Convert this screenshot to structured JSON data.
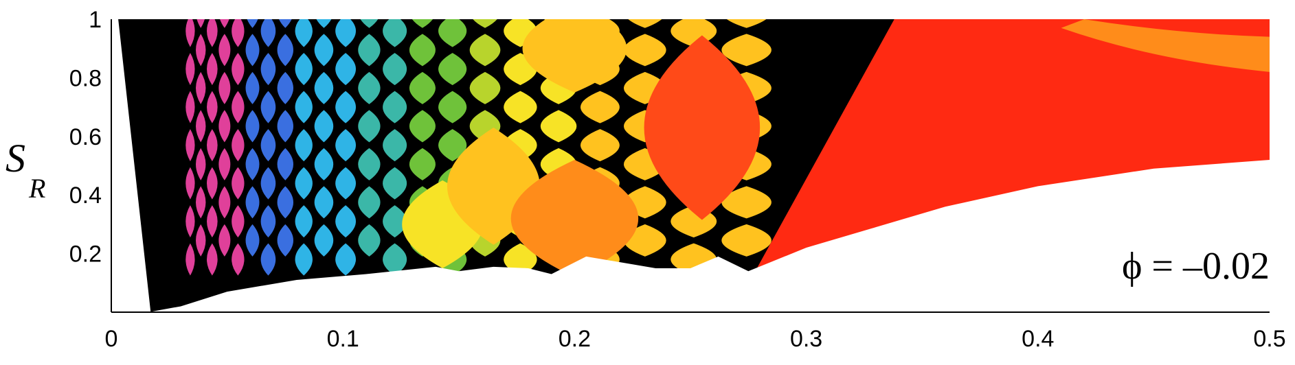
{
  "chart_data": {
    "type": "heatmap",
    "title": "",
    "xlabel": "",
    "ylabel": {
      "main": "S",
      "sub": "R"
    },
    "xlim": [
      0,
      0.5
    ],
    "ylim": [
      0,
      1
    ],
    "xticks": [
      0,
      0.1,
      0.2,
      0.3,
      0.4,
      0.5
    ],
    "xtick_labels": [
      "0",
      "0.1",
      "0.2",
      "0.3",
      "0.4",
      "0.5"
    ],
    "yticks": [
      0.2,
      0.4,
      0.6,
      0.8,
      1
    ],
    "ytick_labels": [
      "0.2",
      "0.4",
      "0.6",
      "0.8",
      "1"
    ],
    "annotation": "ϕ = –0.02",
    "grid": false,
    "colors": {
      "black": "#000000",
      "red": "#ff2a12",
      "red_orange": "#ff4a18",
      "orange": "#ff8c1a",
      "amber": "#ffc21f",
      "yellow": "#f7e326",
      "yellow_green": "#b8d42c",
      "green": "#6fc23a",
      "teal": "#3bb7a8",
      "cyan": "#2fb4e6",
      "blue": "#3a6fe0",
      "magenta": "#e0409a",
      "white": "#ffffff"
    },
    "regions": [
      {
        "name": "lower-boundary",
        "x": [
          0.0,
          0.016,
          0.03,
          0.05,
          0.08,
          0.11,
          0.14,
          0.15,
          0.165,
          0.18,
          0.19,
          0.205,
          0.22,
          0.235,
          0.25,
          0.262,
          0.275,
          0.3,
          0.33,
          0.36,
          0.4,
          0.45,
          0.5
        ],
        "y": [
          0.0,
          0.0,
          0.02,
          0.07,
          0.11,
          0.13,
          0.155,
          0.14,
          0.155,
          0.15,
          0.13,
          0.19,
          0.17,
          0.15,
          0.15,
          0.19,
          0.14,
          0.22,
          0.29,
          0.36,
          0.43,
          0.49,
          0.52
        ]
      },
      {
        "name": "black-left-band",
        "x_range": [
          0.0,
          0.03
        ]
      },
      {
        "name": "large-red-region",
        "x_range": [
          0.278,
          0.5
        ],
        "y_range": [
          0.14,
          1.0
        ]
      },
      {
        "name": "red-orange-lens",
        "center": [
          0.255,
          0.63
        ],
        "width": 0.05,
        "height": 0.63
      },
      {
        "name": "orange-lens",
        "center": [
          0.2,
          0.32
        ],
        "width": 0.055,
        "height": 0.4
      },
      {
        "name": "amber-lens-top",
        "center": [
          0.2,
          0.9
        ],
        "width": 0.045,
        "height": 0.3
      },
      {
        "name": "yellow-lens",
        "center": [
          0.165,
          0.43
        ],
        "width": 0.04,
        "height": 0.4
      },
      {
        "name": "yellow-lens-small",
        "center": [
          0.143,
          0.3
        ],
        "width": 0.035,
        "height": 0.3
      },
      {
        "name": "top-right-orange-band",
        "x_range": [
          0.43,
          0.5
        ],
        "y_range": [
          0.82,
          0.94
        ]
      }
    ]
  }
}
